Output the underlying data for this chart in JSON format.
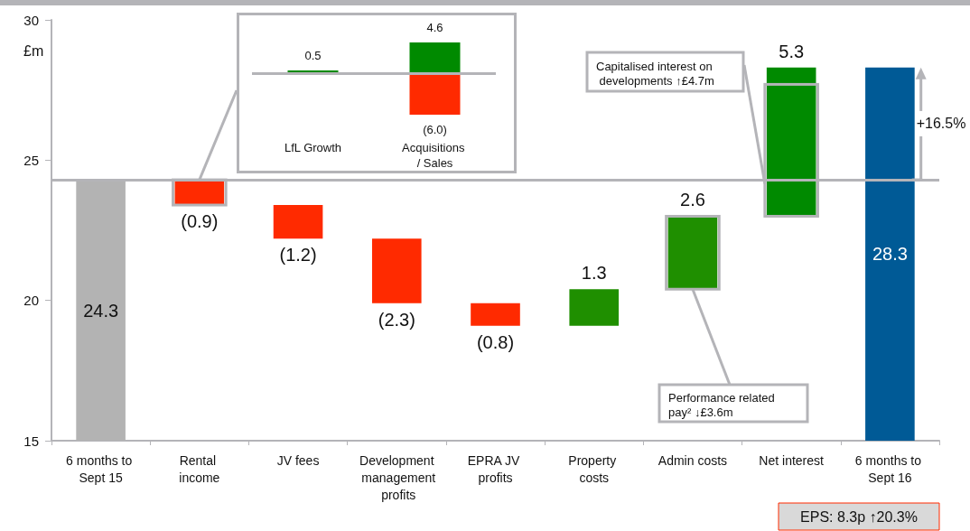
{
  "chart_data": [
    {
      "type": "bar",
      "ylabel": "£m",
      "categories": [
        "6 months to Sept 15",
        "Rental income",
        "JV fees",
        "Development management profits",
        "EPRA JV profits",
        "Property costs",
        "Admin costs",
        "Net interest",
        "6 months to Sept 16"
      ],
      "values": [
        24.3,
        -0.9,
        -1.2,
        -2.3,
        -0.8,
        1.3,
        2.6,
        5.3,
        28.3
      ],
      "base": [
        0,
        24.3,
        23.4,
        22.2,
        19.9,
        19.1,
        20.4,
        23.0,
        0
      ],
      "colors": [
        "#b3b3b3",
        "#ff2a00",
        "#ff2a00",
        "#ff2a00",
        "#ff2a00",
        "#1f8f00",
        "#1f8f00",
        "#008a00",
        "#005a96"
      ],
      "value_labels": [
        "24.3",
        "(0.9)",
        "(1.2)",
        "(2.3)",
        "(0.8)",
        "1.3",
        "2.6",
        "5.3",
        "28.3"
      ],
      "ylim": [
        15,
        30
      ],
      "yticks": [
        15,
        20,
        25,
        30
      ],
      "grid": false,
      "ref_lines": [
        {
          "axis": "y",
          "value": 24.3,
          "color": "#b4b4b8"
        }
      ],
      "annotations": [
        "Capitalised interest on developments ↑£4.7m",
        {
          "text": "Performance related pay² ↓£3.6m",
          "x": "Admin costs",
          "y": 20.4
        },
        "+16.5%",
        "EPS: 8.3p ↑20.3%"
      ]
    },
    {
      "type": "bar",
      "stacked": true,
      "tick_labels": "x",
      "grid": false,
      "categories": [
        "LfL Growth",
        "Acquisitions / Sales"
      ],
      "series": [
        {
          "color": "#008a00",
          "values": [
            0.5,
            4.6
          ],
          "value_labels": [
            "0.5",
            "4.6"
          ]
        },
        {
          "color": "#ff2a00",
          "values": [
            null,
            -6.0
          ],
          "value_labels": [
            null,
            "(6.0)"
          ]
        }
      ],
      "ref_lines": [
        {
          "axis": "y",
          "value": 0,
          "color": "#b4b4b8"
        }
      ]
    }
  ]
}
